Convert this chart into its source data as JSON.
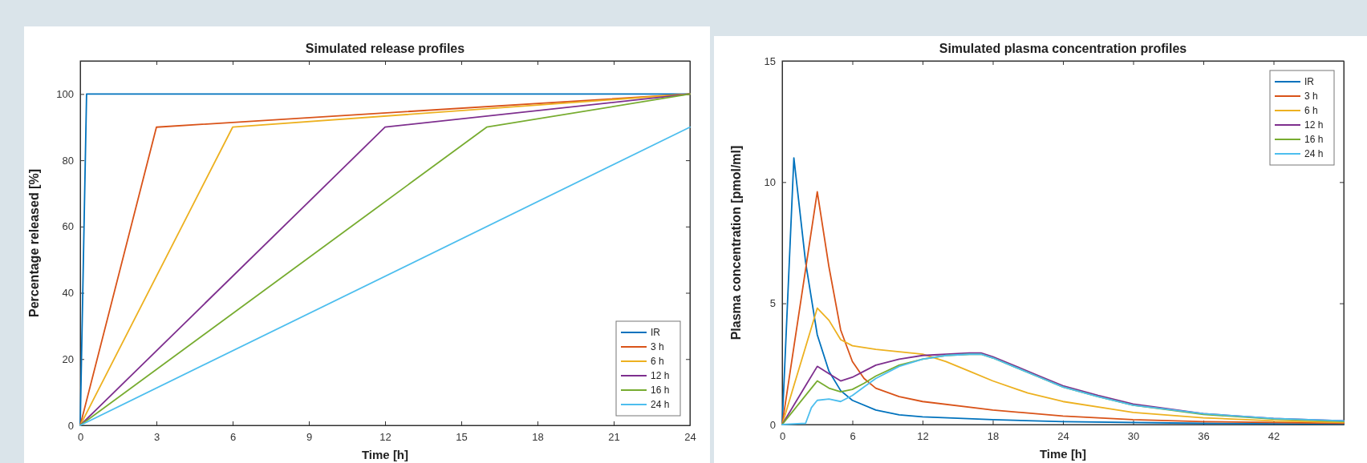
{
  "chart_data": [
    {
      "type": "line",
      "title": "Simulated release profiles",
      "xlabel": "Time [h]",
      "ylabel": "Percentage released [%]",
      "xlim": [
        0,
        24
      ],
      "xticks": [
        0,
        3,
        6,
        9,
        12,
        15,
        18,
        21,
        24
      ],
      "ylim": [
        0,
        110
      ],
      "yticks": [
        0,
        20,
        40,
        60,
        80,
        100
      ],
      "legend": "bottom right",
      "series": [
        {
          "name": "IR",
          "color": "#0072bd",
          "x": [
            0,
            0.25,
            24
          ],
          "values": [
            0,
            100,
            100
          ]
        },
        {
          "name": "3 h",
          "color": "#d95319",
          "x": [
            0,
            3,
            24
          ],
          "values": [
            0,
            90,
            100
          ]
        },
        {
          "name": "6 h",
          "color": "#edb120",
          "x": [
            0,
            6,
            24
          ],
          "values": [
            0,
            90,
            100
          ]
        },
        {
          "name": "12 h",
          "color": "#7e2f8e",
          "x": [
            0,
            12,
            24
          ],
          "values": [
            0,
            90,
            100
          ]
        },
        {
          "name": "16 h",
          "color": "#77ac30",
          "x": [
            0,
            16,
            24
          ],
          "values": [
            0,
            90,
            100
          ]
        },
        {
          "name": "24 h",
          "color": "#4dbeee",
          "x": [
            0,
            24
          ],
          "values": [
            0,
            90
          ]
        }
      ]
    },
    {
      "type": "line",
      "title": "Simulated plasma concentration profiles",
      "xlabel": "Time [h]",
      "ylabel": "Plasma concentration [pmol/ml]",
      "xlim": [
        0,
        48
      ],
      "xticks": [
        0,
        6,
        12,
        18,
        24,
        30,
        36,
        42
      ],
      "ylim": [
        0,
        15
      ],
      "yticks": [
        0,
        5,
        10,
        15
      ],
      "legend": "top right",
      "series": [
        {
          "name": "IR",
          "color": "#0072bd",
          "x": [
            0,
            1,
            2,
            3,
            4,
            5,
            6,
            8,
            10,
            12,
            18,
            24,
            36,
            48
          ],
          "values": [
            0,
            11,
            6.7,
            3.7,
            2.2,
            1.4,
            1,
            0.6,
            0.4,
            0.32,
            0.2,
            0.12,
            0.05,
            0.02
          ]
        },
        {
          "name": "3 h",
          "color": "#d95319",
          "x": [
            0,
            1,
            2,
            3,
            4,
            5,
            6,
            7,
            8,
            10,
            12,
            18,
            24,
            30,
            36,
            48
          ],
          "values": [
            0,
            3.2,
            6.4,
            9.6,
            6.5,
            3.9,
            2.6,
            1.9,
            1.5,
            1.15,
            0.95,
            0.6,
            0.35,
            0.2,
            0.12,
            0.05
          ]
        },
        {
          "name": "6 h",
          "color": "#edb120",
          "x": [
            0,
            1,
            2,
            3,
            4,
            5,
            6,
            8,
            10,
            12,
            14,
            16,
            18,
            21,
            24,
            30,
            36,
            42,
            48
          ],
          "values": [
            0,
            1.6,
            3.2,
            4.8,
            4.3,
            3.5,
            3.25,
            3.1,
            3,
            2.9,
            2.6,
            2.2,
            1.8,
            1.3,
            0.95,
            0.5,
            0.28,
            0.15,
            0.09
          ]
        },
        {
          "name": "12 h",
          "color": "#7e2f8e",
          "x": [
            0,
            1,
            2,
            3,
            4,
            5,
            6,
            7,
            8,
            10,
            12,
            14,
            16,
            17,
            18,
            20,
            22,
            24,
            27,
            30,
            36,
            42,
            48
          ],
          "values": [
            0,
            0.8,
            1.6,
            2.4,
            2.1,
            1.8,
            1.95,
            2.2,
            2.45,
            2.7,
            2.85,
            2.9,
            2.95,
            2.95,
            2.8,
            2.4,
            2,
            1.6,
            1.2,
            0.85,
            0.45,
            0.25,
            0.15
          ]
        },
        {
          "name": "16 h",
          "color": "#77ac30",
          "x": [
            0,
            1,
            2,
            3,
            4,
            5,
            6,
            7,
            8,
            10,
            12,
            14,
            16,
            17,
            18,
            20,
            22,
            24,
            27,
            30,
            36,
            42,
            48
          ],
          "values": [
            0,
            0.6,
            1.2,
            1.8,
            1.5,
            1.35,
            1.45,
            1.7,
            2,
            2.45,
            2.7,
            2.85,
            2.9,
            2.9,
            2.75,
            2.35,
            1.95,
            1.55,
            1.15,
            0.8,
            0.42,
            0.23,
            0.13
          ]
        },
        {
          "name": "24 h",
          "color": "#4dbeee",
          "x": [
            0,
            2,
            2.5,
            3,
            4,
            5,
            6,
            7,
            8,
            10,
            12,
            14,
            16,
            17,
            18,
            20,
            22,
            24,
            27,
            30,
            36,
            42,
            48
          ],
          "values": [
            0,
            0.05,
            0.7,
            1,
            1.05,
            0.95,
            1.2,
            1.55,
            1.9,
            2.4,
            2.7,
            2.85,
            2.9,
            2.9,
            2.75,
            2.35,
            1.95,
            1.55,
            1.15,
            0.8,
            0.45,
            0.25,
            0.15
          ]
        }
      ]
    }
  ]
}
